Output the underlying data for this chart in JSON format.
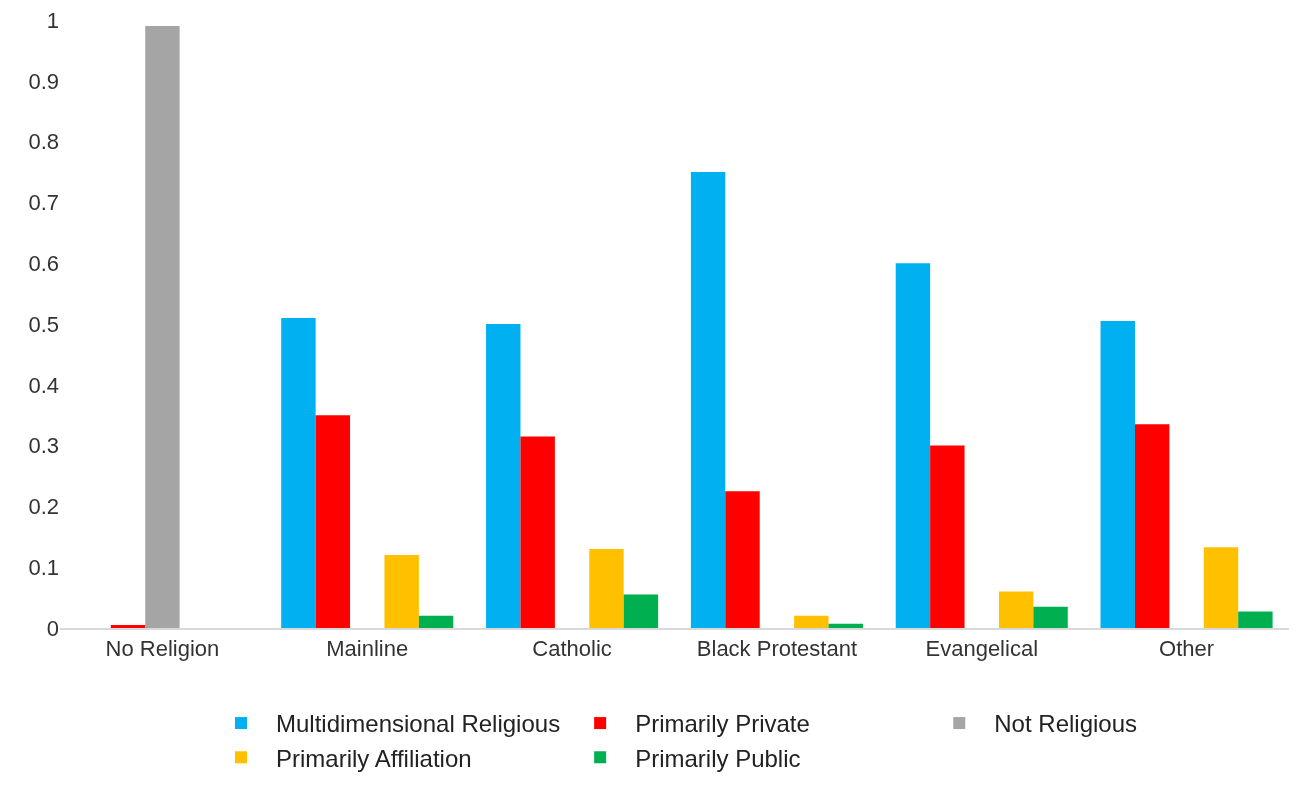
{
  "chart_data": {
    "type": "bar",
    "categories": [
      "No Religion",
      "Mainline",
      "Catholic",
      "Black Protestant",
      "Evangelical",
      "Other"
    ],
    "series": [
      {
        "name": "Multidimensional Religious",
        "color": "#00b0f0",
        "values": [
          0,
          0.51,
          0.5,
          0.75,
          0.6,
          0.505
        ]
      },
      {
        "name": "Primarily Private",
        "color": "#ff0000",
        "values": [
          0.005,
          0.35,
          0.315,
          0.225,
          0.3,
          0.335
        ]
      },
      {
        "name": "Not Religious",
        "color": "#a5a5a5",
        "values": [
          0.99,
          0,
          0,
          0,
          0,
          0
        ]
      },
      {
        "name": "Primarily Affiliation",
        "color": "#ffc000",
        "values": [
          0,
          0.12,
          0.13,
          0.02,
          0.06,
          0.133
        ]
      },
      {
        "name": "Primarily Public",
        "color": "#00b050",
        "values": [
          0,
          0.02,
          0.055,
          0.007,
          0.035,
          0.027
        ]
      }
    ],
    "ylim": [
      0,
      1
    ],
    "yticks": [
      0,
      0.1,
      0.2,
      0.3,
      0.4,
      0.5,
      0.6,
      0.7,
      0.8,
      0.9,
      1
    ],
    "grid": false,
    "legend": "bottom"
  }
}
